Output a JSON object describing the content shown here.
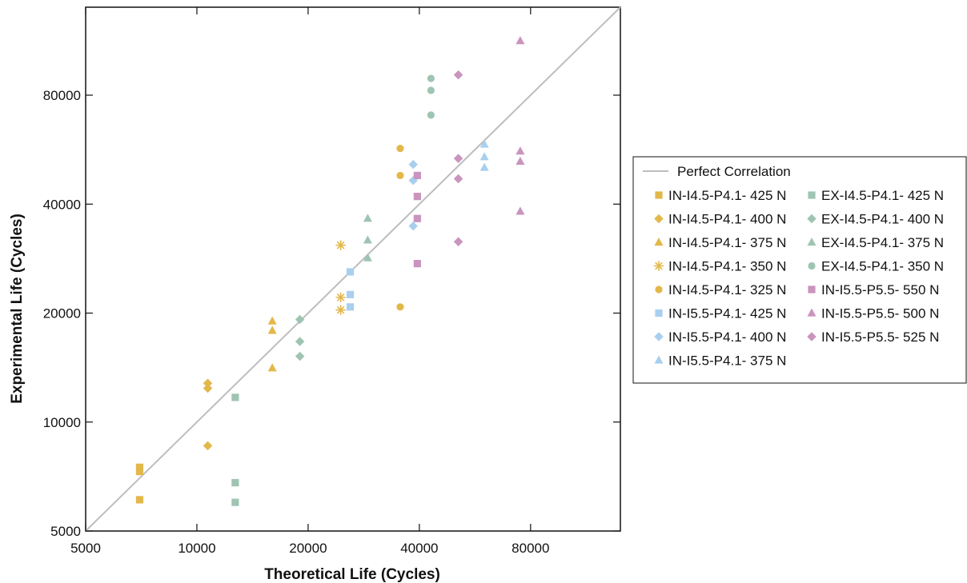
{
  "chart_data": {
    "type": "scatter",
    "xlabel": "Theoretical Life (Cycles)",
    "ylabel": "Experimental Life (Cycles)",
    "scale": "log",
    "xlim": [
      5000,
      140000
    ],
    "ylim": [
      5000,
      140000
    ],
    "x_ticks": [
      5000,
      10000,
      20000,
      40000,
      80000
    ],
    "y_ticks": [
      5000,
      10000,
      20000,
      40000,
      80000
    ],
    "x_tick_labels": [
      "5000",
      "10000",
      "20000",
      "40000",
      "80000"
    ],
    "y_tick_labels": [
      "5000",
      "10000",
      "20000",
      "40000",
      "80000"
    ],
    "grid": false,
    "legend_position": "right",
    "reference_line": {
      "name": "Perfect Correlation",
      "color": "#bdbdbd"
    },
    "series": [
      {
        "name": "IN-I4.5-P4.1- 425 N",
        "marker": "square",
        "color": "#e3b84a",
        "points": [
          [
            7000,
            7500
          ],
          [
            7000,
            7300
          ],
          [
            7000,
            6100
          ]
        ]
      },
      {
        "name": "IN-I4.5-P4.1- 400 N",
        "marker": "diamond",
        "color": "#e3b84a",
        "points": [
          [
            10700,
            12800
          ],
          [
            10700,
            12400
          ],
          [
            10700,
            8600
          ]
        ]
      },
      {
        "name": "IN-I4.5-P4.1- 375 N",
        "marker": "triangle",
        "color": "#e3b84a",
        "points": [
          [
            16000,
            19000
          ],
          [
            16000,
            17900
          ],
          [
            16000,
            14100
          ]
        ]
      },
      {
        "name": "IN-I4.5-P4.1- 350 N",
        "marker": "asterisk",
        "color": "#e3b84a",
        "points": [
          [
            24500,
            30800
          ],
          [
            24500,
            22100
          ],
          [
            24500,
            20400
          ]
        ]
      },
      {
        "name": "IN-I4.5-P4.1- 325 N",
        "marker": "circle",
        "color": "#e3b84a",
        "points": [
          [
            35500,
            57000
          ],
          [
            35500,
            48000
          ],
          [
            35500,
            20800
          ]
        ]
      },
      {
        "name": "IN-I5.5-P4.1- 425 N",
        "marker": "square",
        "color": "#a9cfee",
        "points": [
          [
            26000,
            26000
          ],
          [
            26000,
            22500
          ],
          [
            26000,
            20800
          ]
        ]
      },
      {
        "name": "IN-I5.5-P4.1- 400 N",
        "marker": "diamond",
        "color": "#a9cfee",
        "points": [
          [
            38500,
            51500
          ],
          [
            38500,
            46500
          ],
          [
            38500,
            34800
          ]
        ]
      },
      {
        "name": "IN-I5.5-P4.1- 375 N",
        "marker": "triangle",
        "color": "#a9cfee",
        "points": [
          [
            60000,
            58500
          ],
          [
            60000,
            54000
          ],
          [
            60000,
            50500
          ]
        ]
      },
      {
        "name": "EX-I4.5-P4.1- 425 N",
        "marker": "square",
        "color": "#9fc5b2",
        "points": [
          [
            12700,
            11700
          ],
          [
            12700,
            6800
          ],
          [
            12700,
            6000
          ]
        ]
      },
      {
        "name": "EX-I4.5-P4.1- 400 N",
        "marker": "diamond",
        "color": "#9fc5b2",
        "points": [
          [
            19000,
            19200
          ],
          [
            19000,
            16700
          ],
          [
            19000,
            15200
          ]
        ]
      },
      {
        "name": "EX-I4.5-P4.1- 375 N",
        "marker": "triangle",
        "color": "#9fc5b2",
        "points": [
          [
            29000,
            36500
          ],
          [
            29000,
            31800
          ],
          [
            29000,
            28400
          ]
        ]
      },
      {
        "name": "EX-I4.5-P4.1- 350 N",
        "marker": "circle",
        "color": "#9fc5b2",
        "points": [
          [
            43000,
            89000
          ],
          [
            43000,
            82500
          ],
          [
            43000,
            70500
          ]
        ]
      },
      {
        "name": "IN-I5.5-P5.5- 550 N",
        "marker": "square",
        "color": "#c994bd",
        "points": [
          [
            39500,
            48000
          ],
          [
            39500,
            42000
          ],
          [
            39500,
            36500
          ],
          [
            39500,
            27400
          ]
        ]
      },
      {
        "name": "IN-I5.5-P5.5- 500 N",
        "marker": "triangle",
        "color": "#c994bd",
        "points": [
          [
            75000,
            113000
          ],
          [
            75000,
            56000
          ],
          [
            75000,
            52500
          ],
          [
            75000,
            38200
          ]
        ]
      },
      {
        "name": "IN-I5.5-P5.5- 525 N",
        "marker": "diamond",
        "color": "#c994bd",
        "points": [
          [
            51000,
            91000
          ],
          [
            51000,
            53500
          ],
          [
            51000,
            47000
          ],
          [
            51000,
            31500
          ]
        ]
      }
    ]
  }
}
